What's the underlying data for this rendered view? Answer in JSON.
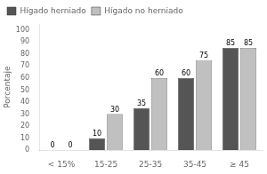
{
  "chart_data": {
    "type": "bar",
    "categories": [
      "< 15%",
      "15-25",
      "25-35",
      "35-45",
      "≥ 45"
    ],
    "series": [
      {
        "name": "Hígado herniado",
        "color": "#555555",
        "values": [
          0,
          10,
          35,
          60,
          85
        ]
      },
      {
        "name": "Hígado no herniado",
        "color": "#c0c0c0",
        "values": [
          0,
          30,
          60,
          75,
          85
        ]
      }
    ],
    "y_label": "Porcentaje",
    "ylim": [
      0,
      105
    ],
    "yticks": [
      0,
      10,
      20,
      30,
      40,
      50,
      60,
      70,
      80,
      90,
      100
    ],
    "grid": false,
    "legend": "upper left",
    "data_labels": true
  }
}
